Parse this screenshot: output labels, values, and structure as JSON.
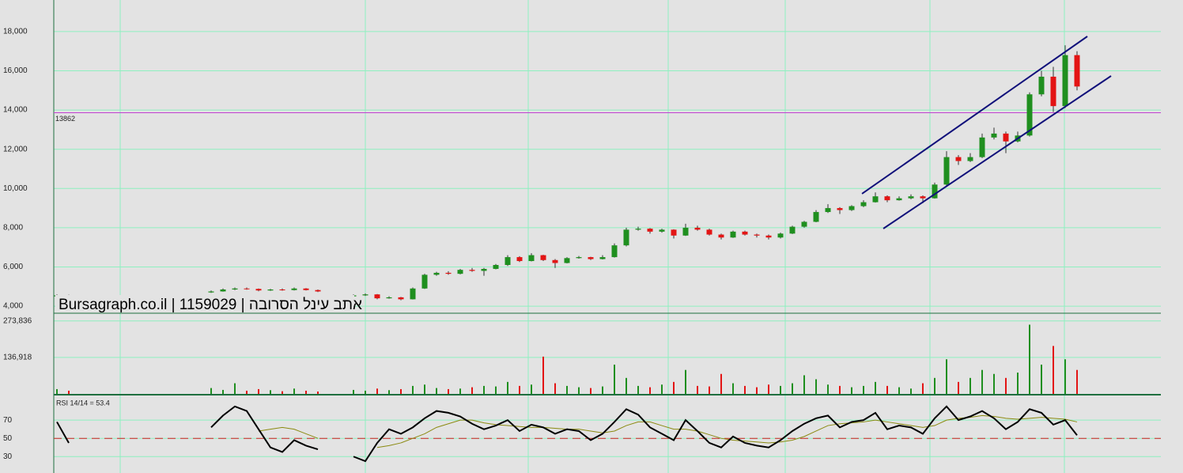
{
  "chart_data": {
    "type": "candlestick",
    "watermark": "Bursagraph.co.il | 1159029 | הבורסה לניע בתא",
    "rsi_label": "RSI 14/14 = 53.4",
    "up_color": "#1f8f1f",
    "down_color": "#e31414",
    "candles": [
      [
        4500,
        4600,
        4480,
        4550
      ],
      [
        4550,
        4580,
        4490,
        4520
      ],
      null,
      null,
      null,
      null,
      null,
      null,
      null,
      null,
      null,
      null,
      null,
      [
        4700,
        4800,
        4680,
        4750
      ],
      [
        4750,
        4900,
        4740,
        4850
      ],
      [
        4850,
        4950,
        4820,
        4900
      ],
      [
        4900,
        4950,
        4840,
        4880
      ],
      [
        4880,
        4900,
        4760,
        4800
      ],
      [
        4800,
        4880,
        4780,
        4850
      ],
      [
        4850,
        4900,
        4790,
        4820
      ],
      [
        4820,
        4950,
        4800,
        4900
      ],
      [
        4900,
        4920,
        4800,
        4820
      ],
      [
        4820,
        4850,
        4720,
        4750
      ],
      null,
      null,
      [
        4500,
        4600,
        4480,
        4550
      ],
      [
        4550,
        4650,
        4520,
        4600
      ],
      [
        4600,
        4620,
        4350,
        4400
      ],
      [
        4400,
        4500,
        4380,
        4450
      ],
      [
        4450,
        4470,
        4300,
        4350
      ],
      [
        4350,
        4950,
        4340,
        4900
      ],
      [
        4900,
        5650,
        4880,
        5600
      ],
      [
        5600,
        5750,
        5550,
        5700
      ],
      [
        5700,
        5780,
        5600,
        5650
      ],
      [
        5650,
        5900,
        5620,
        5850
      ],
      [
        5850,
        5950,
        5750,
        5800
      ],
      [
        5800,
        5950,
        5550,
        5900
      ],
      [
        5900,
        6150,
        5880,
        6100
      ],
      [
        6100,
        6600,
        6050,
        6500
      ],
      [
        6500,
        6550,
        6250,
        6300
      ],
      [
        6300,
        6700,
        6280,
        6600
      ],
      [
        6600,
        6620,
        6300,
        6350
      ],
      [
        6350,
        6400,
        5950,
        6200
      ],
      [
        6200,
        6500,
        6180,
        6450
      ],
      [
        6450,
        6560,
        6420,
        6500
      ],
      [
        6500,
        6520,
        6350,
        6400
      ],
      [
        6400,
        6600,
        6380,
        6500
      ],
      [
        6500,
        7200,
        6480,
        7100
      ],
      [
        7100,
        8000,
        7050,
        7900
      ],
      [
        7900,
        8050,
        7850,
        7950
      ],
      [
        7950,
        7980,
        7700,
        7800
      ],
      [
        7800,
        7950,
        7750,
        7900
      ],
      [
        7900,
        7920,
        7450,
        7600
      ],
      [
        7600,
        8200,
        7580,
        8000
      ],
      [
        8000,
        8100,
        7850,
        7900
      ],
      [
        7900,
        7950,
        7600,
        7650
      ],
      [
        7650,
        7700,
        7400,
        7500
      ],
      [
        7500,
        7850,
        7480,
        7800
      ],
      [
        7800,
        7850,
        7600,
        7650
      ],
      [
        7650,
        7700,
        7500,
        7600
      ],
      [
        7600,
        7650,
        7400,
        7500
      ],
      [
        7500,
        7750,
        7450,
        7700
      ],
      [
        7700,
        8100,
        7680,
        8050
      ],
      [
        8050,
        8350,
        8000,
        8300
      ],
      [
        8300,
        8900,
        8280,
        8800
      ],
      [
        8800,
        9200,
        8750,
        9000
      ],
      [
        9000,
        9050,
        8700,
        8900
      ],
      [
        8900,
        9150,
        8850,
        9100
      ],
      [
        9100,
        9400,
        9050,
        9300
      ],
      [
        9300,
        9800,
        9280,
        9600
      ],
      [
        9600,
        9650,
        9300,
        9400
      ],
      [
        9400,
        9600,
        9380,
        9500
      ],
      [
        9500,
        9700,
        9450,
        9600
      ],
      [
        9600,
        9650,
        9250,
        9500
      ],
      [
        9500,
        10300,
        9480,
        10200
      ],
      [
        10200,
        11900,
        10150,
        11600
      ],
      [
        11600,
        11700,
        11200,
        11400
      ],
      [
        11400,
        11800,
        11350,
        11600
      ],
      [
        11600,
        12800,
        11550,
        12600
      ],
      [
        12600,
        13100,
        12500,
        12800
      ],
      [
        12800,
        12900,
        11800,
        12400
      ],
      [
        12400,
        12900,
        12350,
        12700
      ],
      [
        12700,
        14900,
        12650,
        14800
      ],
      [
        14800,
        16000,
        14700,
        15700
      ],
      [
        15700,
        16200,
        13900,
        14200
      ],
      [
        14200,
        17300,
        14100,
        16800
      ],
      [
        16800,
        17000,
        15000,
        15200
      ]
    ],
    "ylim": [
      3680,
      19610
    ],
    "yticks": [
      {
        "value": 4000,
        "label": "4,000"
      },
      {
        "value": 6000,
        "label": "6,000"
      },
      {
        "value": 8000,
        "label": "8,000"
      },
      {
        "value": 10000,
        "label": "10,000"
      },
      {
        "value": 12000,
        "label": "12,000"
      },
      {
        "value": 14000,
        "label": "14,000"
      },
      {
        "value": 16000,
        "label": "16,000"
      },
      {
        "value": 18000,
        "label": "18,000"
      }
    ],
    "hline": 13862,
    "trendlines": [
      {
        "x": [
          67.87,
          86.87
        ],
        "y": [
          9730,
          17755
        ]
      },
      {
        "x": [
          69.67,
          88.87
        ],
        "y": [
          7955,
          15738
        ]
      }
    ],
    "volume": [
      18000,
      12000,
      null,
      null,
      null,
      null,
      null,
      null,
      null,
      null,
      null,
      null,
      null,
      22000,
      15000,
      40000,
      12000,
      18000,
      14000,
      10000,
      20000,
      12000,
      9000,
      null,
      null,
      15000,
      12000,
      20000,
      14000,
      18000,
      30000,
      35000,
      22000,
      18000,
      20000,
      25000,
      30000,
      28000,
      45000,
      30000,
      35000,
      140000,
      40000,
      30000,
      25000,
      22000,
      28000,
      110000,
      60000,
      30000,
      25000,
      35000,
      45000,
      90000,
      30000,
      28000,
      75000,
      40000,
      30000,
      25000,
      35000,
      30000,
      40000,
      70000,
      55000,
      35000,
      30000,
      25000,
      30000,
      45000,
      30000,
      25000,
      20000,
      40000,
      60000,
      130000,
      45000,
      60000,
      90000,
      75000,
      60000,
      80000,
      260000,
      110000,
      180000,
      130000,
      90000
    ],
    "vol_ylim": [
      0,
      300000
    ],
    "vol_yticks": [
      {
        "value": 136918,
        "label": "136,918"
      },
      {
        "value": 273836,
        "label": "273,836"
      }
    ],
    "rsi": [
      68,
      45,
      null,
      null,
      null,
      null,
      null,
      null,
      null,
      null,
      null,
      null,
      null,
      62,
      75,
      85,
      80,
      60,
      40,
      35,
      48,
      42,
      38,
      null,
      null,
      30,
      25,
      45,
      60,
      55,
      62,
      72,
      80,
      78,
      74,
      66,
      60,
      64,
      70,
      58,
      65,
      62,
      55,
      60,
      58,
      48,
      55,
      68,
      82,
      76,
      62,
      55,
      48,
      70,
      58,
      45,
      40,
      52,
      45,
      42,
      40,
      48,
      58,
      66,
      72,
      75,
      62,
      68,
      70,
      78,
      60,
      64,
      62,
      55,
      72,
      85,
      70,
      74,
      80,
      72,
      60,
      68,
      82,
      78,
      65,
      70,
      53.4
    ],
    "rsi_ma": [
      null,
      null,
      null,
      null,
      null,
      null,
      null,
      null,
      null,
      null,
      null,
      null,
      null,
      null,
      null,
      null,
      null,
      58,
      60,
      62,
      60,
      55,
      50,
      null,
      null,
      null,
      null,
      40,
      42,
      45,
      50,
      55,
      62,
      66,
      70,
      70,
      67,
      65,
      64,
      63,
      62,
      62,
      61,
      60,
      60,
      58,
      56,
      58,
      64,
      68,
      68,
      64,
      60,
      60,
      58,
      54,
      50,
      48,
      47,
      46,
      45,
      46,
      48,
      52,
      58,
      64,
      66,
      67,
      68,
      70,
      68,
      66,
      64,
      62,
      64,
      70,
      72,
      73,
      75,
      74,
      72,
      71,
      72,
      73,
      72,
      71,
      68
    ],
    "rsi_ylim": [
      12,
      97
    ],
    "rsi_yticks": [
      30,
      50,
      70
    ],
    "rsi_ref": 50
  }
}
